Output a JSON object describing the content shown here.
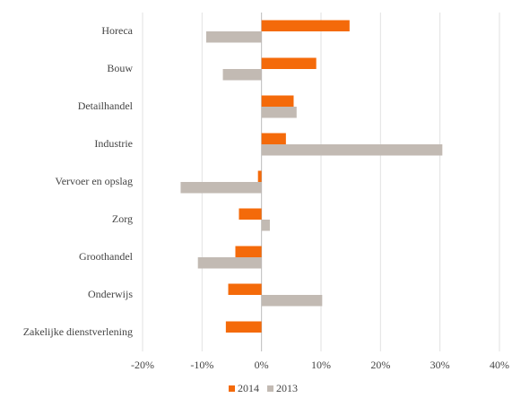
{
  "chart_data": {
    "type": "hbar",
    "categories": [
      "Horeca",
      "Bouw",
      "Detailhandel",
      "Industrie",
      "Vervoer en opslag",
      "Zorg",
      "Groothandel",
      "Onderwijs",
      "Zakelijke dienstverlening"
    ],
    "series": [
      {
        "name": "2014",
        "color": "#f46a0a",
        "values": [
          14.8,
          9.2,
          5.4,
          4.1,
          -0.6,
          -3.8,
          -4.4,
          -5.6,
          -6.0
        ]
      },
      {
        "name": "2013",
        "color": "#c2bab3",
        "values": [
          -9.3,
          -6.5,
          5.9,
          30.4,
          -13.6,
          1.4,
          -10.7,
          10.2,
          0
        ]
      }
    ],
    "xlim": [
      -20,
      40
    ],
    "xticks": [
      {
        "value": -20,
        "label": "-20%"
      },
      {
        "value": -10,
        "label": "-10%"
      },
      {
        "value": 0,
        "label": "0%"
      },
      {
        "value": 10,
        "label": "10%"
      },
      {
        "value": 20,
        "label": "20%"
      },
      {
        "value": 30,
        "label": "30%"
      },
      {
        "value": 40,
        "label": "40%"
      }
    ],
    "grid": true,
    "legend": "bottom"
  }
}
